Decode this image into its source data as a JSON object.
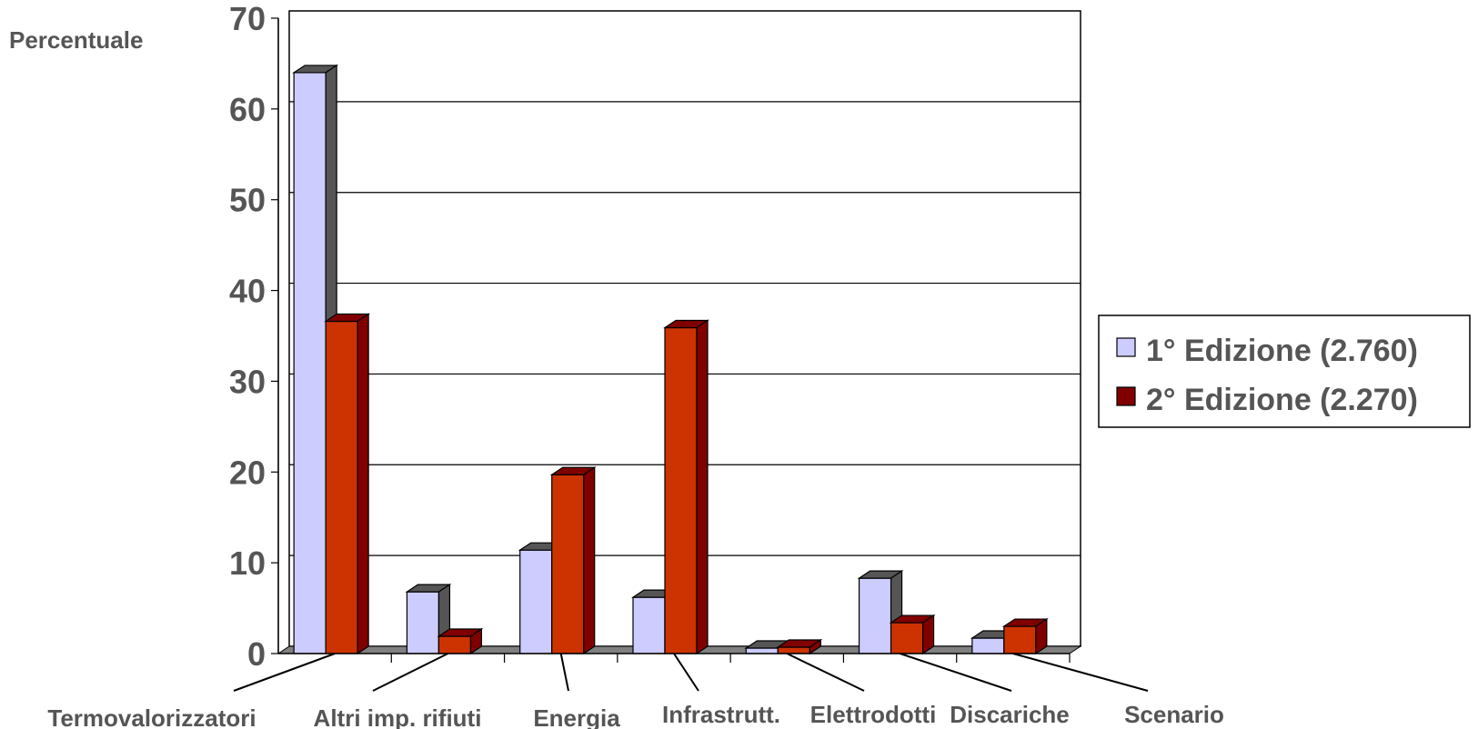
{
  "chart_data": {
    "type": "bar",
    "title": "",
    "ylabel": "Percentuale",
    "xlabel": "",
    "ylim": [
      0,
      70
    ],
    "yticks": [
      0,
      10,
      20,
      30,
      40,
      50,
      60,
      70
    ],
    "grid": true,
    "legend_position": "right",
    "categories": [
      "Termovalorizzatori",
      "Altri imp. rifiuti",
      "Energia",
      "Infrastrutt.",
      "Elettrodotti",
      "Discariche",
      "Scenario"
    ],
    "series": [
      {
        "name": "1° Edizione (2.760)",
        "values": [
          64,
          6.8,
          11.4,
          6.2,
          0.6,
          8.3,
          1.7
        ],
        "color": "#ccccff",
        "side_color": "#555555"
      },
      {
        "name": "2° Edizione (2.270)",
        "values": [
          36.6,
          1.9,
          19.7,
          35.9,
          0.7,
          3.4,
          3.0
        ],
        "color": "#cc3300",
        "side_color": "#800000"
      }
    ],
    "legend_swatch_colors": [
      "#ccccff",
      "#800000"
    ]
  }
}
